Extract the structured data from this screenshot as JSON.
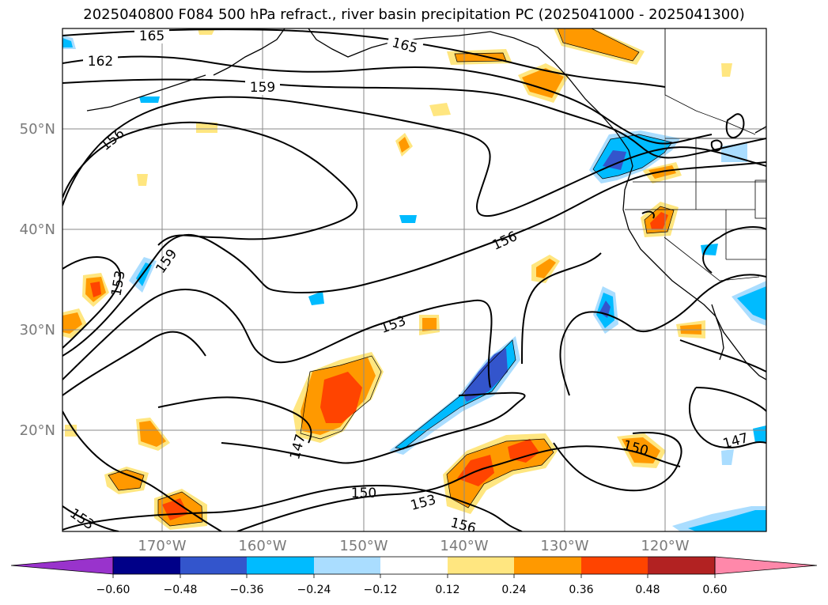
{
  "title": "2025040800 F084 500 hPa refract., river basin precipitation PC (2025041000 - 2025041300)",
  "latitude_labels": [
    "50°N",
    "40°N",
    "30°N",
    "20°N"
  ],
  "longitude_labels": [
    "170°W",
    "160°W",
    "150°W",
    "140°W",
    "130°W",
    "120°W"
  ],
  "contour_labels": [
    "165",
    "165",
    "162",
    "159",
    "156",
    "159",
    "153",
    "156",
    "153",
    "147",
    "150",
    "153",
    "153",
    "156",
    "150",
    "147"
  ],
  "colorbar": {
    "tick_labels": [
      "−0.60",
      "−0.48",
      "−0.36",
      "−0.24",
      "−0.12",
      "0.12",
      "0.24",
      "0.36",
      "0.48",
      "0.60"
    ],
    "colors": [
      "#9933cc",
      "#000088",
      "#3355cc",
      "#00bbff",
      "#aaddff",
      "#ffffff",
      "#ffe680",
      "#ff9900",
      "#ff4400",
      "#b22222",
      "#ff88aa"
    ]
  }
}
